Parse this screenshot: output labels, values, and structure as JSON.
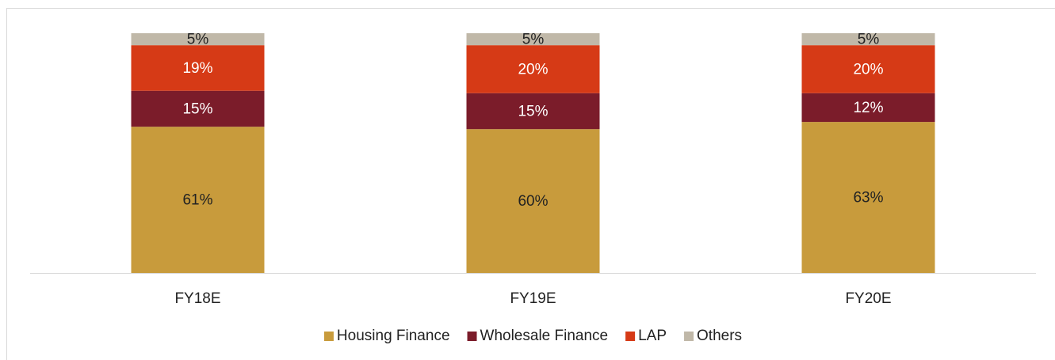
{
  "chart_data": {
    "type": "stacked_bar",
    "categories": [
      "FY18E",
      "FY19E",
      "FY20E"
    ],
    "series": [
      {
        "name": "Housing Finance",
        "color": "#c89b3c",
        "label_color": "#222222",
        "values": [
          61,
          60,
          63
        ],
        "value_labels": [
          "61%",
          "60%",
          "63%"
        ]
      },
      {
        "name": "Wholesale Finance",
        "color": "#7b1c2a",
        "label_color": "#ffffff",
        "values": [
          15,
          15,
          12
        ],
        "value_labels": [
          "15%",
          "15%",
          "12%"
        ]
      },
      {
        "name": "LAP",
        "color": "#d63a16",
        "label_color": "#ffffff",
        "values": [
          19,
          20,
          20
        ],
        "value_labels": [
          "19%",
          "20%",
          "20%"
        ]
      },
      {
        "name": "Others",
        "color": "#c0b8a8",
        "label_color": "#222222",
        "values": [
          5,
          5,
          5
        ],
        "value_labels": [
          "5%",
          "5%",
          "5%"
        ]
      }
    ],
    "ylim": [
      0,
      100
    ],
    "legend": "bottom"
  }
}
